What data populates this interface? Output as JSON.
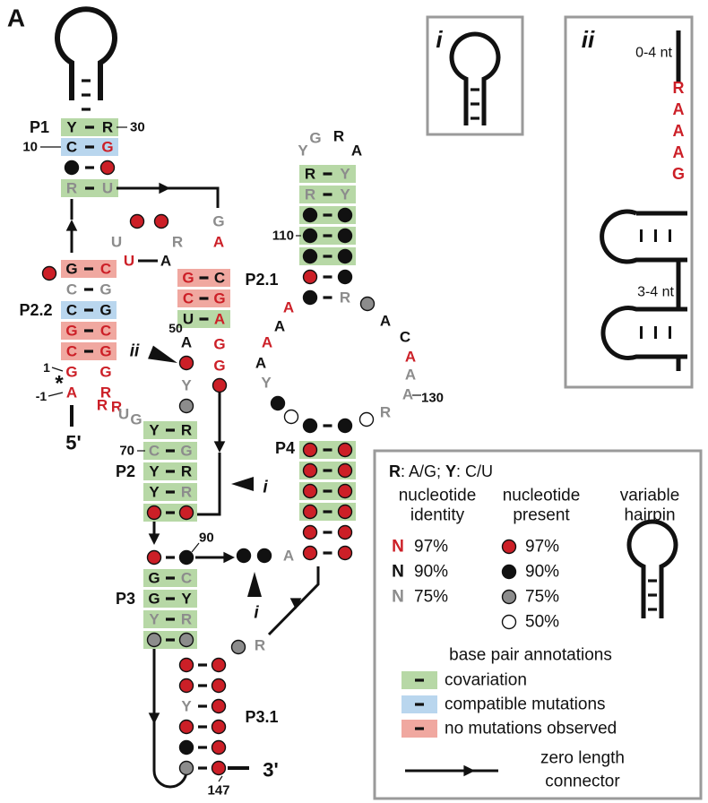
{
  "figure_label": "A",
  "colors": {
    "red": "#cc1f27",
    "black": "#111111",
    "gray": "#8c8c8c",
    "green_box": "#b7d8a6",
    "blue_box": "#b9d6ee",
    "pink_box": "#f0a8a0",
    "frame": "#9a9a9a"
  },
  "stems": {
    "p1": "P1",
    "p2_2": "P2.2",
    "p2_1": "P2.1",
    "p2": "P2",
    "p3": "P3",
    "p3_1": "P3.1",
    "p4": "P4"
  },
  "positions": {
    "n30": "30",
    "n10": "10",
    "n50": "50",
    "n110": "110",
    "n1": "1",
    "nm1": "-1",
    "n70": "70",
    "n130": "130",
    "n90": "90",
    "n147": "147"
  },
  "ends": {
    "five": "5'",
    "three": "3'",
    "star": "*"
  },
  "pointers": {
    "i": "i",
    "ii": "ii"
  },
  "insets": {
    "i_label": "i",
    "ii_label": "ii",
    "ii_top_range": "0-4 nt",
    "ii_motif": [
      "R",
      "A",
      "A",
      "A",
      "G"
    ],
    "ii_linker_range": "3-4 nt"
  },
  "legend": {
    "rule_R": "R",
    "rule_R_text": ": A/G; ",
    "rule_Y": "Y",
    "rule_Y_text": ": C/U",
    "col_identity": [
      "nucleotide",
      "identity"
    ],
    "col_present": [
      "nucleotide",
      "present"
    ],
    "col_hairpin": [
      "variable",
      "hairpin"
    ],
    "identity_rows": [
      {
        "glyph": "N",
        "value": "97%",
        "color": "red"
      },
      {
        "glyph": "N",
        "value": "90%",
        "color": "black"
      },
      {
        "glyph": "N",
        "value": "75%",
        "color": "gray"
      }
    ],
    "present_rows": [
      {
        "value": "97%",
        "fill": "red"
      },
      {
        "value": "90%",
        "fill": "black"
      },
      {
        "value": "75%",
        "fill": "gray"
      },
      {
        "value": "50%",
        "fill": "white"
      }
    ],
    "annotations_title": "base pair annotations",
    "annotation_rows": [
      {
        "label": "covariation",
        "color": "green_box"
      },
      {
        "label": "compatible mutations",
        "color": "blue_box"
      },
      {
        "label": "no mutations observed",
        "color": "pink_box"
      }
    ],
    "connector_label": [
      "zero length",
      "connector"
    ]
  }
}
